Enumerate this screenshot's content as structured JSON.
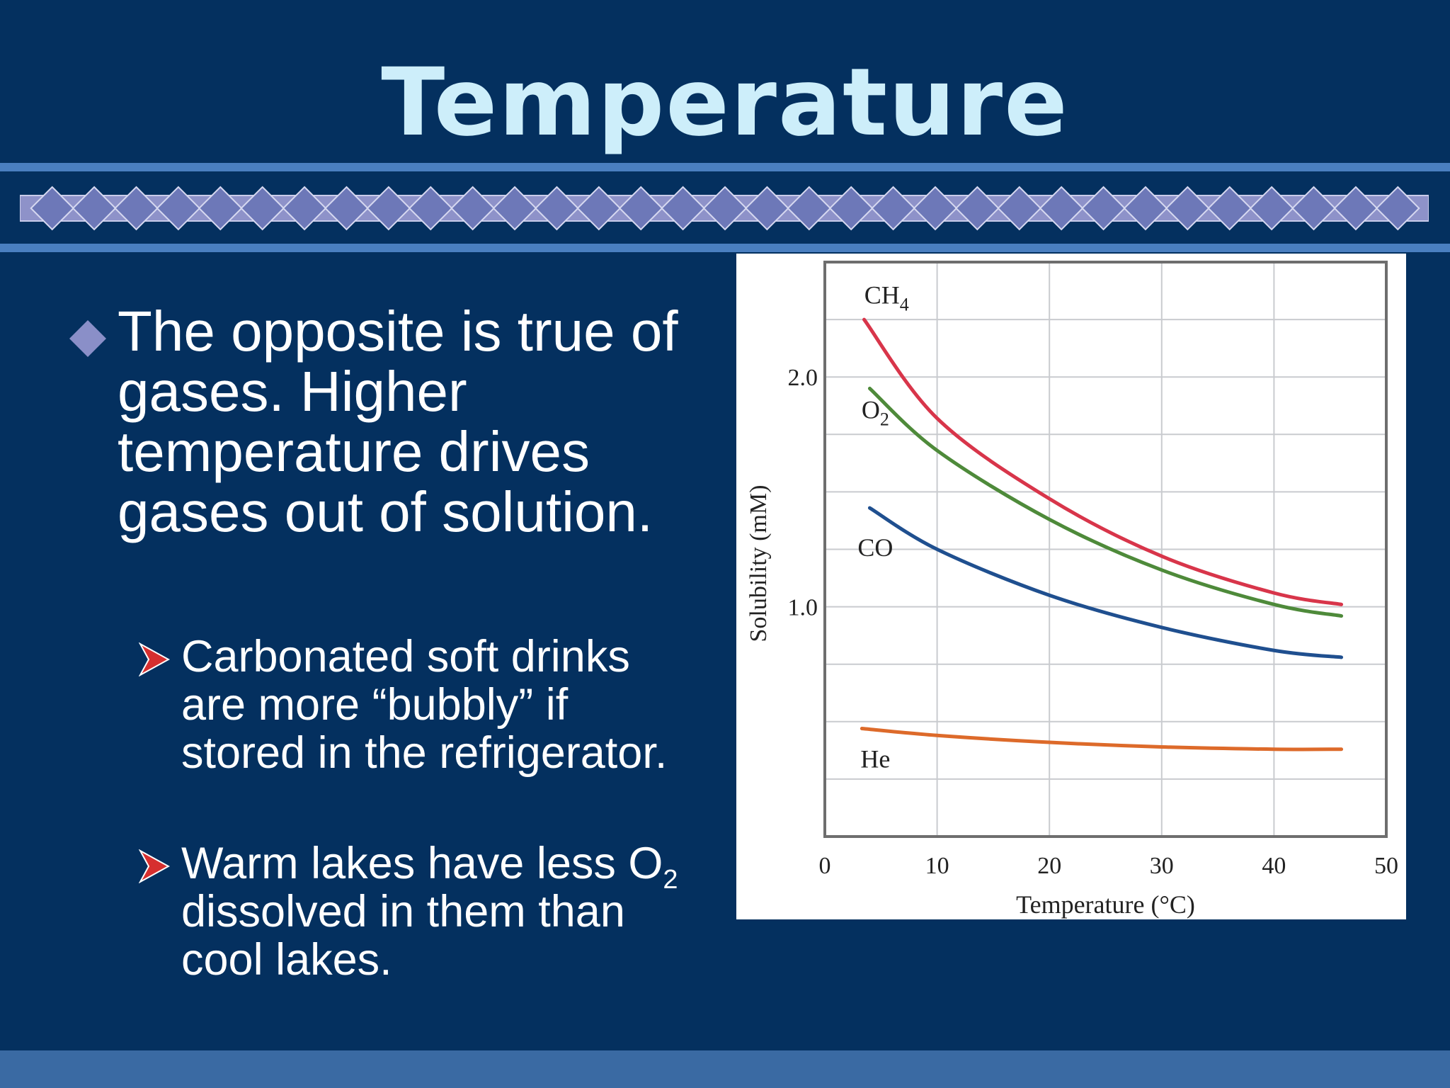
{
  "slide": {
    "title": "Temperature",
    "bullet_main": "The opposite is true of gases. Higher temperature drives gases out of solution.",
    "sub1": "Carbonated soft drinks are more “bubbly” if stored in the refrigerator.",
    "sub2_part1": "Warm lakes have less O",
    "sub2_sub": "2",
    "sub2_part2": " dissolved in them than cool lakes."
  },
  "colors": {
    "background": "#04305f",
    "title": "#cdeefa",
    "bullet_diamond": "#8a8fc8",
    "sub_arrow": "#d62f2f",
    "stripe": "#4a7fc0",
    "diamond_fill": "#6d78b8"
  },
  "icons": {
    "main_bullet": "diamond-bullet-icon",
    "sub_bullet": "arrowhead-bullet-icon"
  },
  "chart_data": {
    "type": "line",
    "title": "",
    "xlabel": "Temperature (°C)",
    "ylabel": "Solubility (mM)",
    "xlim": [
      0,
      50
    ],
    "ylim": [
      0,
      2.5
    ],
    "x_ticks": [
      "0",
      "10",
      "20",
      "30",
      "40",
      "50"
    ],
    "y_ticks": [
      "1.0",
      "2.0"
    ],
    "grid": true,
    "legend": "inline labels",
    "series": [
      {
        "name": "CH4",
        "label_main": "CH",
        "label_sub": "4",
        "color": "#d8354a",
        "x": [
          3.5,
          10,
          20,
          30,
          40,
          46
        ],
        "y": [
          2.25,
          1.82,
          1.47,
          1.22,
          1.06,
          1.01
        ]
      },
      {
        "name": "O2",
        "label_main": "O",
        "label_sub": "2",
        "color": "#4e8a3a",
        "x": [
          4,
          10,
          20,
          30,
          40,
          46
        ],
        "y": [
          1.95,
          1.68,
          1.38,
          1.16,
          1.01,
          0.96
        ]
      },
      {
        "name": "CO",
        "label_main": "CO",
        "label_sub": "",
        "color": "#1f4f8f",
        "x": [
          4,
          10,
          20,
          30,
          40,
          46
        ],
        "y": [
          1.43,
          1.25,
          1.05,
          0.91,
          0.81,
          0.78
        ]
      },
      {
        "name": "He",
        "label_main": "He",
        "label_sub": "",
        "color": "#dd6a2a",
        "x": [
          3.3,
          10,
          20,
          30,
          40,
          46
        ],
        "y": [
          0.47,
          0.44,
          0.41,
          0.39,
          0.38,
          0.38
        ]
      }
    ]
  }
}
